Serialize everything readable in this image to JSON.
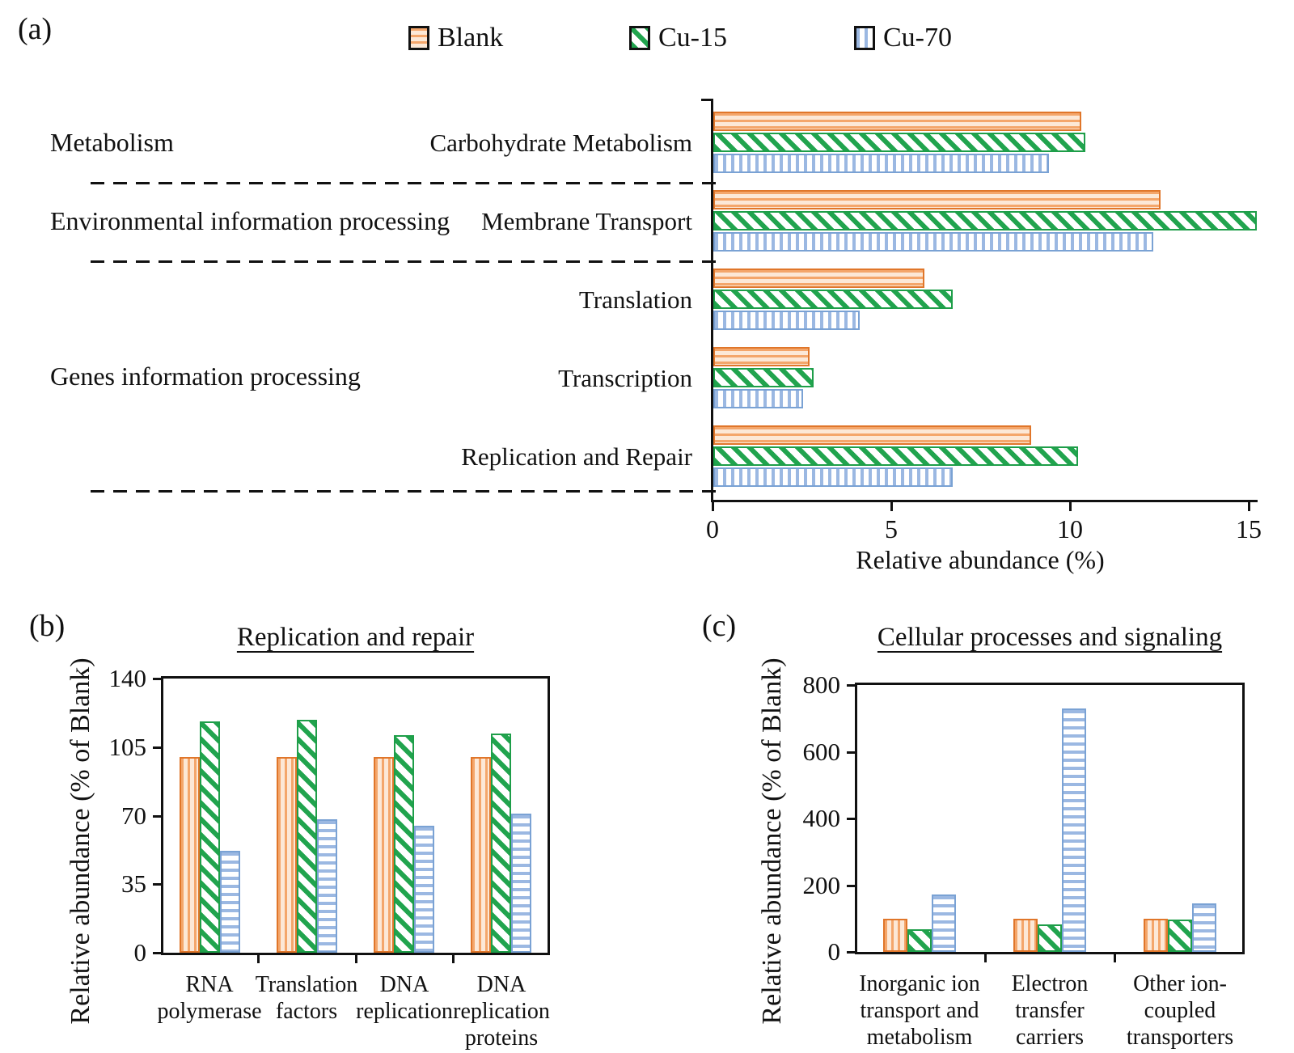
{
  "panels": {
    "a": {
      "label": "(a)"
    },
    "b": {
      "label": "(b)"
    },
    "c": {
      "label": "(c)"
    }
  },
  "legend": {
    "items": [
      {
        "label": "Blank",
        "color": "#E0762A",
        "pattern": "horizontal-stripes"
      },
      {
        "label": "Cu-15",
        "color": "#21A44E",
        "pattern": "diagonal-stripes"
      },
      {
        "label": "Cu-70",
        "color": "#7AA2D4",
        "pattern": "vertical-stripes"
      }
    ]
  },
  "chart_data": [
    {
      "panel": "a",
      "type": "bar",
      "orientation": "horizontal",
      "title": "",
      "xlabel": "Relative abundance (%)",
      "xlim": [
        0,
        15
      ],
      "xticks": [
        0,
        5,
        10,
        15
      ],
      "grid": false,
      "legend_position": "top",
      "series": [
        "Blank",
        "Cu-15",
        "Cu-70"
      ],
      "rows": [
        {
          "category": "Carbohydrate Metabolism",
          "values": [
            10.3,
            10.4,
            9.4
          ]
        },
        {
          "category": "Membrane Transport",
          "values": [
            12.5,
            15.2,
            12.3
          ]
        },
        {
          "category": "Translation",
          "values": [
            5.9,
            6.7,
            4.1
          ]
        },
        {
          "category": "Transcription",
          "values": [
            2.7,
            2.8,
            2.5
          ]
        },
        {
          "category": "Replication and Repair",
          "values": [
            8.9,
            10.2,
            6.7
          ]
        }
      ],
      "sections": [
        {
          "label": "Metabolism",
          "rows": [
            0,
            0
          ]
        },
        {
          "label": "Environmental information processing",
          "rows": [
            1,
            1
          ]
        },
        {
          "label": "Genes information processing",
          "rows": [
            2,
            4
          ]
        }
      ],
      "separators_after_rows": [
        0,
        1,
        4
      ]
    },
    {
      "panel": "b",
      "type": "bar",
      "orientation": "vertical",
      "title": "Replication and repair",
      "ylabel": "Relative abundance (% of Blank)",
      "ylim": [
        0,
        140
      ],
      "yticks": [
        0,
        35,
        70,
        105,
        140
      ],
      "grid": false,
      "categories": [
        [
          "RNA",
          "polymerase"
        ],
        [
          "Translation",
          "factors"
        ],
        [
          "DNA",
          "replication"
        ],
        [
          "DNA",
          "replication",
          "proteins"
        ]
      ],
      "series": [
        {
          "name": "Blank",
          "values": [
            100,
            100,
            100,
            100
          ]
        },
        {
          "name": "Cu-15",
          "values": [
            118,
            119,
            111,
            112
          ]
        },
        {
          "name": "Cu-70",
          "values": [
            52,
            68,
            65,
            71
          ]
        }
      ]
    },
    {
      "panel": "c",
      "type": "bar",
      "orientation": "vertical",
      "title": "Cellular processes and signaling",
      "ylabel": "Relative abundance (% of Blank)",
      "ylim": [
        0,
        800
      ],
      "yticks": [
        0,
        200,
        400,
        600,
        800
      ],
      "grid": false,
      "categories": [
        [
          "Inorganic ion",
          "transport and",
          "metabolism"
        ],
        [
          "Electron",
          "transfer",
          "carriers"
        ],
        [
          "Other ion-",
          "coupled",
          "transporters"
        ]
      ],
      "series": [
        {
          "name": "Blank",
          "values": [
            100,
            100,
            100
          ]
        },
        {
          "name": "Cu-15",
          "values": [
            67,
            82,
            97
          ]
        },
        {
          "name": "Cu-70",
          "values": [
            172,
            730,
            145
          ]
        }
      ]
    }
  ]
}
